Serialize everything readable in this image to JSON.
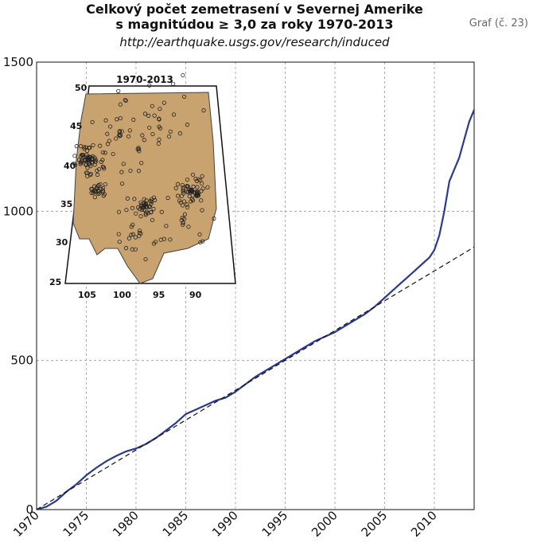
{
  "header": {
    "title_line1": "Celkový počet zemetrasení v Severnej Amerike",
    "title_line2": "s magnitúdou ≥ 3,0 za roky 1970-2013",
    "url": "http://earthquake.usgs.gov/research/induced",
    "ref": "Graf (č. 23)"
  },
  "chart_data": {
    "type": "line",
    "title": "Celkový počet zemetrasení v Severnej Amerike s magnitúdou ≥ 3,0 za roky 1970-2013",
    "xlim": [
      1970,
      2014
    ],
    "ylim": [
      0,
      1500
    ],
    "x_ticks": [
      "1970",
      "1975",
      "1980",
      "1985",
      "1990",
      "1995",
      "2000",
      "2005",
      "2010"
    ],
    "y_ticks": [
      "0",
      "500",
      "1000",
      "1500"
    ],
    "grid": "dashed",
    "series": [
      {
        "style": "solid",
        "color": "#2b3a8f",
        "x": [
          1970,
          1970.5,
          1971,
          1972,
          1973,
          1974,
          1975,
          1976,
          1977,
          1978,
          1979,
          1980,
          1981,
          1982,
          1983,
          1984,
          1985,
          1986,
          1987,
          1988,
          1989,
          1990,
          1991,
          1992,
          1993,
          1994,
          1995,
          1996,
          1997,
          1998,
          1999,
          2000,
          2001,
          2002,
          2003,
          2004,
          2005,
          2006,
          2007,
          2008,
          2009,
          2009.5,
          2010,
          2010.5,
          2011,
          2011.5,
          2012,
          2012.5,
          2013,
          2013.5,
          2014
        ],
        "y": [
          0,
          5,
          10,
          30,
          60,
          85,
          115,
          140,
          162,
          180,
          195,
          205,
          220,
          240,
          265,
          290,
          320,
          335,
          350,
          365,
          375,
          395,
          420,
          445,
          465,
          485,
          505,
          525,
          545,
          565,
          580,
          595,
          615,
          635,
          655,
          680,
          710,
          740,
          770,
          800,
          830,
          845,
          870,
          920,
          1000,
          1100,
          1140,
          1180,
          1240,
          1300,
          1340
        ]
      },
      {
        "style": "dashed",
        "color": "#111111",
        "x": [
          1970,
          2014
        ],
        "y": [
          0,
          880
        ]
      }
    ]
  },
  "map": {
    "title": "1970-2013",
    "lat_labels": [
      "50",
      "45",
      "40",
      "35",
      "30",
      "25"
    ],
    "lon_labels": [
      "105",
      "100",
      "95",
      "90"
    ]
  }
}
